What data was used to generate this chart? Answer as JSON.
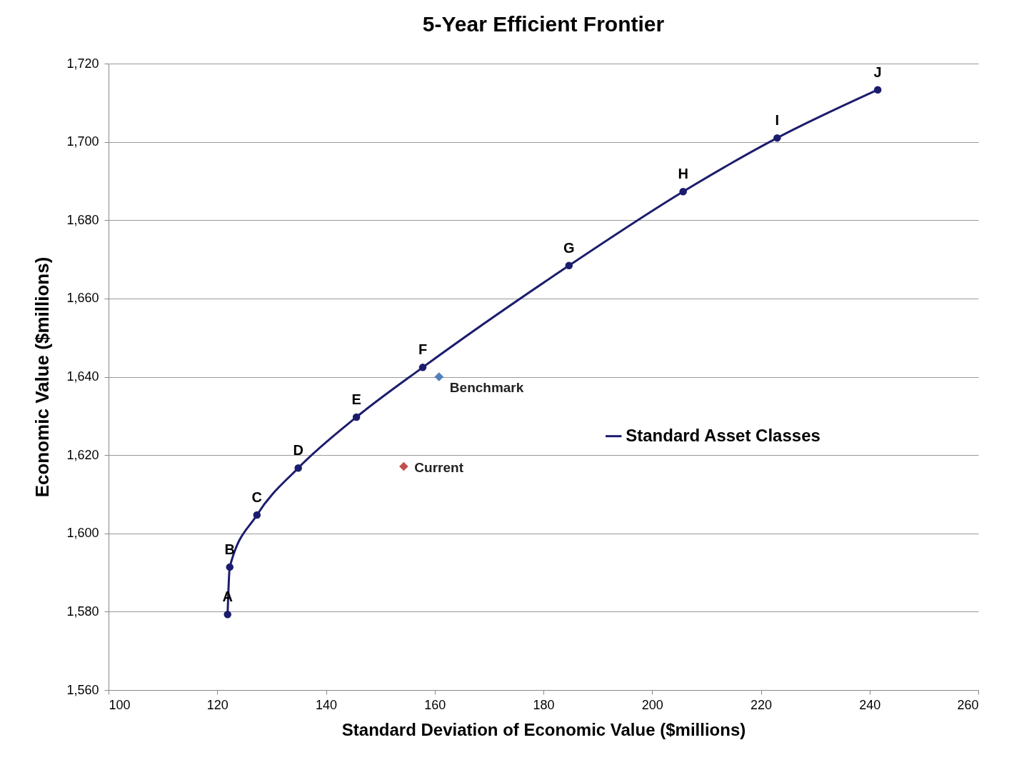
{
  "chart_data": {
    "type": "line",
    "title": "5-Year Efficient Frontier",
    "xlabel": "Standard Deviation of Economic Value ($millions)",
    "ylabel": "Economic Value ($millions)",
    "xlim": [
      100,
      260
    ],
    "xticks": [
      100,
      120,
      140,
      160,
      180,
      200,
      220,
      240,
      260
    ],
    "ylim": [
      1560,
      1720
    ],
    "yticks": [
      {
        "value": 1560,
        "label": "1,560"
      },
      {
        "value": 1580,
        "label": "1,580"
      },
      {
        "value": 1600,
        "label": "1,600"
      },
      {
        "value": 1620,
        "label": "1,620"
      },
      {
        "value": 1640,
        "label": "1,640"
      },
      {
        "value": 1660,
        "label": "1,660"
      },
      {
        "value": 1680,
        "label": "1,680"
      },
      {
        "value": 1700,
        "label": "1,700"
      },
      {
        "value": 1720,
        "label": "1,720"
      }
    ],
    "grid": "y",
    "legend": "right",
    "marker": "circle",
    "series": [
      {
        "name": "Standard Asset Classes",
        "color": "#1c1c6e",
        "x": [
          121.9,
          122.3,
          127.3,
          134.9,
          145.6,
          157.8,
          184.7,
          205.7,
          223.0,
          241.5
        ],
        "values": [
          1579.3,
          1591.4,
          1604.7,
          1616.7,
          1629.7,
          1642.4,
          1668.4,
          1687.3,
          1701.0,
          1713.3
        ]
      },
      {
        "name": "Benchmark",
        "type": "scatter",
        "marker": "diamond",
        "color": "#4f81bd",
        "x": [
          160.8
        ],
        "values": [
          1640
        ]
      },
      {
        "name": "Current",
        "type": "scatter",
        "marker": "diamond",
        "color": "#c0504d",
        "x": [
          154.3
        ],
        "values": [
          1617.1
        ]
      }
    ],
    "annotations": [
      {
        "text": "A",
        "x": 121.9,
        "y": 1579.3
      },
      {
        "text": "B",
        "x": 122.3,
        "y": 1591.4
      },
      {
        "text": "C",
        "x": 127.3,
        "y": 1604.7
      },
      {
        "text": "D",
        "x": 134.9,
        "y": 1616.7
      },
      {
        "text": "E",
        "x": 145.6,
        "y": 1629.7
      },
      {
        "text": "F",
        "x": 157.8,
        "y": 1642.4
      },
      {
        "text": "G",
        "x": 184.7,
        "y": 1668.4
      },
      {
        "text": "H",
        "x": 205.7,
        "y": 1687.3
      },
      {
        "text": "I",
        "x": 223.0,
        "y": 1701.0
      },
      {
        "text": "J",
        "x": 241.5,
        "y": 1713.3
      }
    ]
  }
}
